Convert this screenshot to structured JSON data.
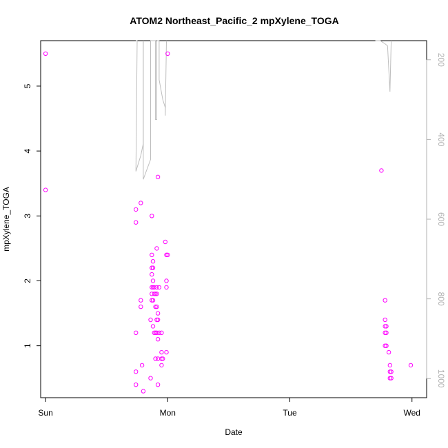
{
  "chart_data": {
    "type": "scatter",
    "title": "ATOM2 Northeast_Pacific_2 mpXylene_TOGA",
    "xlabel": "Date",
    "ylabel": "mpXylene_TOGA",
    "x_unit": "days",
    "xlim": [
      -0.04,
      3.12
    ],
    "ylim": [
      0.2,
      5.7
    ],
    "x_ticks": [
      {
        "value": 0,
        "label": "Sun"
      },
      {
        "value": 1,
        "label": "Mon"
      },
      {
        "value": 2,
        "label": "Tue"
      },
      {
        "value": 3,
        "label": "Wed"
      }
    ],
    "y_ticks": [
      1,
      2,
      3,
      4,
      5
    ],
    "y2_ticks": [
      200,
      400,
      600,
      800,
      1000
    ],
    "y2lim": [
      1048,
      152
    ],
    "point_color": "#ff00ff",
    "line_color": "#bebebe",
    "series": [
      {
        "name": "mpXylene_TOGA",
        "points": [
          [
            0.0,
            5.5
          ],
          [
            0.0,
            3.4
          ],
          [
            0.74,
            3.1
          ],
          [
            0.74,
            2.9
          ],
          [
            0.74,
            1.2
          ],
          [
            0.74,
            0.6
          ],
          [
            0.74,
            0.4
          ],
          [
            0.78,
            3.2
          ],
          [
            0.78,
            1.7
          ],
          [
            0.78,
            1.6
          ],
          [
            0.79,
            0.7
          ],
          [
            0.8,
            0.3
          ],
          [
            0.86,
            1.4
          ],
          [
            0.86,
            0.5
          ],
          [
            0.87,
            3.0
          ],
          [
            0.87,
            2.4
          ],
          [
            0.87,
            2.2
          ],
          [
            0.87,
            2.1
          ],
          [
            0.87,
            1.9
          ],
          [
            0.87,
            1.8
          ],
          [
            0.87,
            1.7
          ],
          [
            0.88,
            2.3
          ],
          [
            0.88,
            2.2
          ],
          [
            0.88,
            2.0
          ],
          [
            0.88,
            1.9
          ],
          [
            0.88,
            1.7
          ],
          [
            0.88,
            1.3
          ],
          [
            0.89,
            1.9
          ],
          [
            0.89,
            1.8
          ],
          [
            0.89,
            1.2
          ],
          [
            0.9,
            1.8
          ],
          [
            0.9,
            1.6
          ],
          [
            0.9,
            1.2
          ],
          [
            0.9,
            0.8
          ],
          [
            0.91,
            2.5
          ],
          [
            0.91,
            1.9
          ],
          [
            0.91,
            1.8
          ],
          [
            0.91,
            1.6
          ],
          [
            0.91,
            1.4
          ],
          [
            0.91,
            1.2
          ],
          [
            0.92,
            3.6
          ],
          [
            0.92,
            1.5
          ],
          [
            0.92,
            1.4
          ],
          [
            0.92,
            1.1
          ],
          [
            0.92,
            0.8
          ],
          [
            0.92,
            0.4
          ],
          [
            0.93,
            1.9
          ],
          [
            0.93,
            1.2
          ],
          [
            0.95,
            1.2
          ],
          [
            0.95,
            0.9
          ],
          [
            0.95,
            0.8
          ],
          [
            0.95,
            0.7
          ],
          [
            0.96,
            0.8
          ],
          [
            0.98,
            2.6
          ],
          [
            0.99,
            2.4
          ],
          [
            0.99,
            2.0
          ],
          [
            0.99,
            1.9
          ],
          [
            0.99,
            0.9
          ],
          [
            1.0,
            5.5
          ],
          [
            1.0,
            2.4
          ],
          [
            2.75,
            3.7
          ],
          [
            2.78,
            1.7
          ],
          [
            2.78,
            1.4
          ],
          [
            2.78,
            1.3
          ],
          [
            2.78,
            1.2
          ],
          [
            2.78,
            1.0
          ],
          [
            2.79,
            1.3
          ],
          [
            2.79,
            1.2
          ],
          [
            2.79,
            1.0
          ],
          [
            2.81,
            0.9
          ],
          [
            2.82,
            0.7
          ],
          [
            2.82,
            0.6
          ],
          [
            2.82,
            0.5
          ],
          [
            2.83,
            0.6
          ],
          [
            2.83,
            0.5
          ],
          [
            2.99,
            0.7
          ]
        ]
      },
      {
        "name": "",
        "axis": "right",
        "segments": [
          [
            [
              0.74,
              152
            ],
            [
              0.75,
              152
            ],
            [
              0.74,
              480
            ],
            [
              0.78,
              440
            ],
            [
              0.8,
              410
            ],
            [
              0.8,
              152
            ]
          ],
          [
            [
              0.8,
              152
            ],
            [
              0.8,
              500
            ],
            [
              0.86,
              450
            ],
            [
              0.86,
              152
            ],
            [
              0.88,
              152
            ],
            [
              0.89,
              152
            ],
            [
              0.9,
              152
            ],
            [
              0.9,
              350
            ],
            [
              0.91,
              350
            ],
            [
              0.91,
              152
            ],
            [
              0.93,
              152
            ],
            [
              0.93,
              250
            ],
            [
              0.96,
              300
            ],
            [
              0.98,
              320
            ],
            [
              0.98,
              340
            ],
            [
              0.99,
              152
            ]
          ],
          [
            [
              2.7,
              152
            ],
            [
              2.74,
              152
            ],
            [
              2.78,
              160
            ],
            [
              2.8,
              165
            ],
            [
              2.82,
              280
            ],
            [
              2.83,
              152
            ]
          ]
        ]
      }
    ]
  }
}
